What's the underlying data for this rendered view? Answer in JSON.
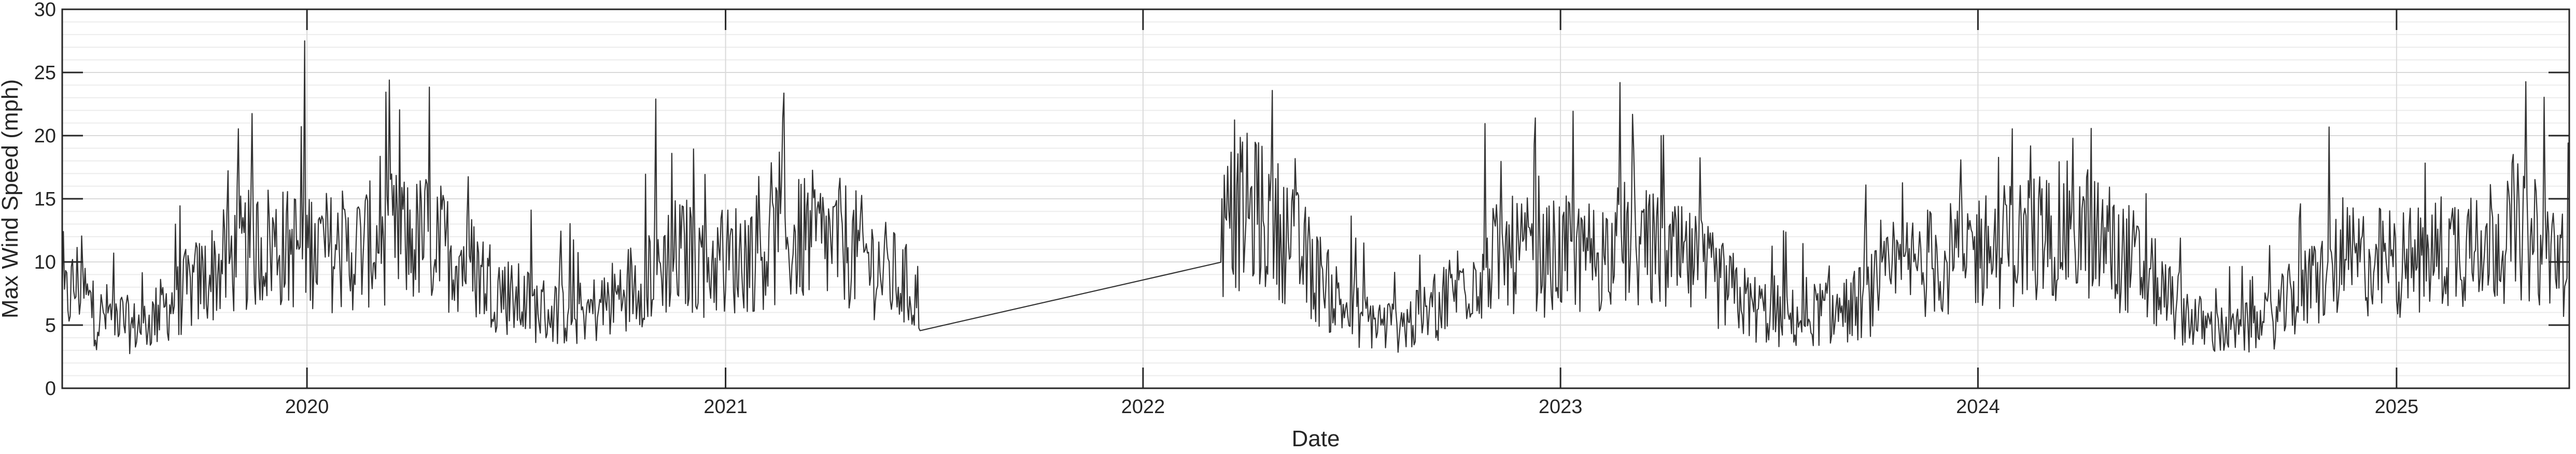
{
  "chart_data": {
    "type": "line",
    "xlabel": "Date",
    "ylabel": "Max Wind Speed (mph)",
    "x_type": "date",
    "xlim": [
      "2019-06-01",
      "2025-06-01"
    ],
    "ylim": [
      0,
      30
    ],
    "yticks": [
      0,
      5,
      10,
      15,
      20,
      25,
      30
    ],
    "yticklabels": [
      "0",
      "5",
      "10",
      "15",
      "20",
      "25",
      "30"
    ],
    "xticks": [
      "2020-01-01",
      "2021-01-01",
      "2022-01-01",
      "2023-01-01",
      "2024-01-01",
      "2025-01-01"
    ],
    "xticklabels": [
      "2020",
      "2021",
      "2022",
      "2023",
      "2024",
      "2025"
    ],
    "grid": true,
    "minor_grid": true,
    "legend": "none",
    "line_color": "#333333",
    "data_gap": [
      "2021-06-20",
      "2022-03-10"
    ],
    "series": [
      {
        "values": [
          [
            "2019-06-01",
            6.5
          ],
          [
            "2019-06-15",
            8.5
          ],
          [
            "2019-07-01",
            5.5
          ],
          [
            "2019-07-15",
            6.0
          ],
          [
            "2019-08-01",
            4.8
          ],
          [
            "2019-08-15",
            5.2
          ],
          [
            "2019-09-01",
            6.5
          ],
          [
            "2019-09-15",
            7.5
          ],
          [
            "2019-10-01",
            8.5
          ],
          [
            "2019-10-15",
            9.5
          ],
          [
            "2019-11-01",
            10.5
          ],
          [
            "2019-11-15",
            11.0
          ],
          [
            "2019-12-01",
            11.5
          ],
          [
            "2019-12-15",
            11.0
          ],
          [
            "2020-01-01",
            11.5
          ],
          [
            "2020-01-15",
            11.0
          ],
          [
            "2020-02-01",
            10.5
          ],
          [
            "2020-02-15",
            11.0
          ],
          [
            "2020-03-01",
            11.5
          ],
          [
            "2020-03-15",
            12.0
          ],
          [
            "2020-04-01",
            11.5
          ],
          [
            "2020-04-15",
            12.0
          ],
          [
            "2020-05-01",
            11.0
          ],
          [
            "2020-05-15",
            10.5
          ],
          [
            "2020-06-01",
            9.0
          ],
          [
            "2020-06-15",
            8.0
          ],
          [
            "2020-07-01",
            7.0
          ],
          [
            "2020-07-15",
            6.5
          ],
          [
            "2020-08-01",
            6.0
          ],
          [
            "2020-08-15",
            6.0
          ],
          [
            "2020-09-01",
            6.0
          ],
          [
            "2020-09-15",
            6.5
          ],
          [
            "2020-10-01",
            7.5
          ],
          [
            "2020-10-15",
            8.5
          ],
          [
            "2020-11-01",
            9.5
          ],
          [
            "2020-11-15",
            10.5
          ],
          [
            "2020-12-01",
            10.5
          ],
          [
            "2020-12-15",
            10.0
          ],
          [
            "2021-01-01",
            10.0
          ],
          [
            "2021-01-15",
            10.5
          ],
          [
            "2021-02-01",
            11.0
          ],
          [
            "2021-02-15",
            11.5
          ],
          [
            "2021-03-01",
            11.5
          ],
          [
            "2021-03-15",
            12.0
          ],
          [
            "2021-04-01",
            11.5
          ],
          [
            "2021-04-15",
            11.5
          ],
          [
            "2021-05-01",
            10.5
          ],
          [
            "2021-05-15",
            9.5
          ],
          [
            "2021-06-01",
            8.5
          ],
          [
            "2021-06-20",
            7.0
          ],
          [
            "2022-03-10",
            12.0
          ],
          [
            "2022-03-20",
            13.5
          ],
          [
            "2022-04-01",
            14.0
          ],
          [
            "2022-04-15",
            13.5
          ],
          [
            "2022-05-01",
            12.5
          ],
          [
            "2022-05-15",
            11.0
          ],
          [
            "2022-06-01",
            9.0
          ],
          [
            "2022-06-15",
            7.5
          ],
          [
            "2022-07-01",
            6.0
          ],
          [
            "2022-07-15",
            5.5
          ],
          [
            "2022-08-01",
            5.0
          ],
          [
            "2022-08-15",
            5.0
          ],
          [
            "2022-09-01",
            5.5
          ],
          [
            "2022-09-15",
            6.5
          ],
          [
            "2022-10-01",
            8.0
          ],
          [
            "2022-10-15",
            9.0
          ],
          [
            "2022-11-01",
            10.0
          ],
          [
            "2022-11-15",
            10.5
          ],
          [
            "2022-12-01",
            10.5
          ],
          [
            "2022-12-15",
            10.0
          ],
          [
            "2023-01-01",
            10.5
          ],
          [
            "2023-01-15",
            10.5
          ],
          [
            "2023-02-01",
            10.5
          ],
          [
            "2023-02-15",
            11.0
          ],
          [
            "2023-03-01",
            11.5
          ],
          [
            "2023-03-15",
            11.0
          ],
          [
            "2023-04-01",
            10.5
          ],
          [
            "2023-04-15",
            10.0
          ],
          [
            "2023-05-01",
            9.5
          ],
          [
            "2023-05-15",
            8.5
          ],
          [
            "2023-06-01",
            7.5
          ],
          [
            "2023-06-15",
            6.5
          ],
          [
            "2023-07-01",
            6.0
          ],
          [
            "2023-07-15",
            5.5
          ],
          [
            "2023-08-01",
            5.5
          ],
          [
            "2023-08-15",
            6.0
          ],
          [
            "2023-09-01",
            6.0
          ],
          [
            "2023-09-15",
            6.5
          ],
          [
            "2023-10-01",
            7.5
          ],
          [
            "2023-10-15",
            8.5
          ],
          [
            "2023-11-01",
            9.5
          ],
          [
            "2023-11-15",
            10.0
          ],
          [
            "2023-12-01",
            10.0
          ],
          [
            "2023-12-15",
            10.5
          ],
          [
            "2024-01-01",
            11.0
          ],
          [
            "2024-01-15",
            11.0
          ],
          [
            "2024-02-01",
            11.5
          ],
          [
            "2024-02-15",
            12.0
          ],
          [
            "2024-03-01",
            12.0
          ],
          [
            "2024-03-15",
            12.5
          ],
          [
            "2024-04-01",
            12.5
          ],
          [
            "2024-04-15",
            12.0
          ],
          [
            "2024-05-01",
            11.0
          ],
          [
            "2024-05-15",
            10.0
          ],
          [
            "2024-06-01",
            8.5
          ],
          [
            "2024-06-15",
            7.0
          ],
          [
            "2024-07-01",
            6.0
          ],
          [
            "2024-07-15",
            5.0
          ],
          [
            "2024-08-01",
            4.5
          ],
          [
            "2024-08-15",
            4.5
          ],
          [
            "2024-09-01",
            5.0
          ],
          [
            "2024-09-15",
            5.5
          ],
          [
            "2024-10-01",
            7.0
          ],
          [
            "2024-10-15",
            8.0
          ],
          [
            "2024-11-01",
            9.0
          ],
          [
            "2024-11-15",
            10.0
          ],
          [
            "2024-12-01",
            10.0
          ],
          [
            "2024-12-15",
            10.0
          ],
          [
            "2025-01-01",
            10.0
          ],
          [
            "2025-01-15",
            10.0
          ],
          [
            "2025-02-01",
            10.5
          ],
          [
            "2025-02-15",
            11.0
          ],
          [
            "2025-03-01",
            11.5
          ],
          [
            "2025-03-15",
            12.0
          ],
          [
            "2025-04-01",
            12.0
          ],
          [
            "2025-04-15",
            12.5
          ],
          [
            "2025-05-01",
            11.5
          ],
          [
            "2025-05-15",
            11.0
          ],
          [
            "2025-06-01",
            10.0
          ]
        ]
      }
    ]
  }
}
